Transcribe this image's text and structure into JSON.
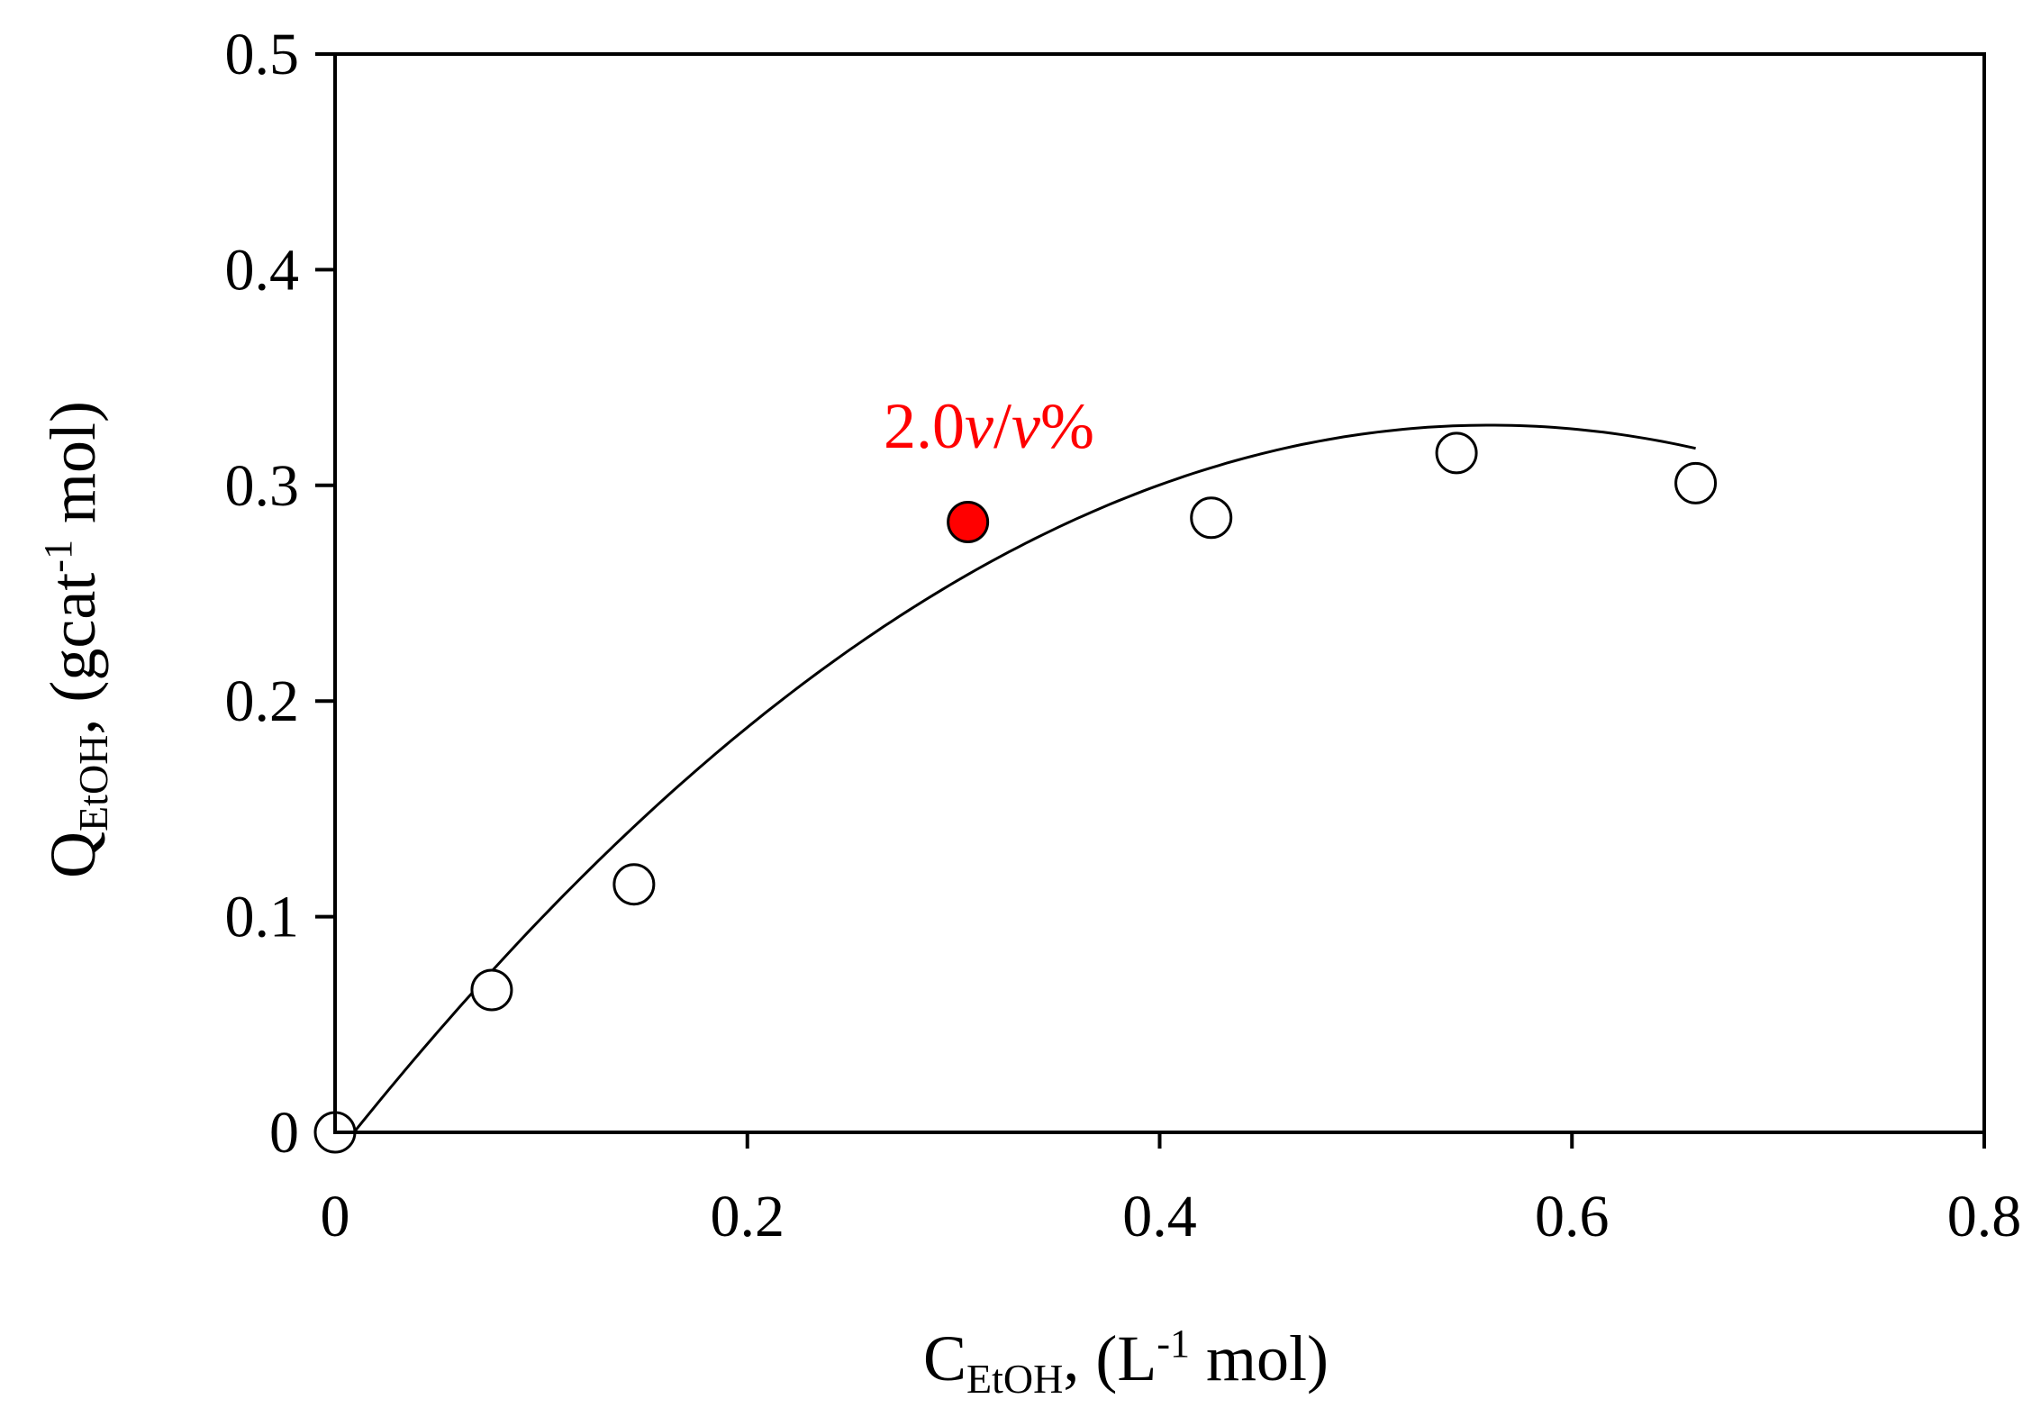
{
  "chart_data": {
    "type": "scatter",
    "xlim": [
      0,
      0.8
    ],
    "ylim": [
      0,
      0.5
    ],
    "x_ticks": [
      "0",
      "0.2",
      "0.4",
      "0.6",
      "0.8"
    ],
    "y_ticks": [
      "0",
      "0.1",
      "0.2",
      "0.3",
      "0.4",
      "0.5"
    ],
    "xlabel": {
      "main": "C",
      "sub": "EtOH",
      "rest1": ", (L",
      "sup": "-1",
      "rest2": " mol)"
    },
    "ylabel": {
      "main": "Q",
      "sub": "EtOH",
      "rest1": ", (gcat",
      "sup": "-1",
      "rest2": " mol)"
    },
    "grid": false,
    "series": [
      {
        "marker": "open-circle",
        "x": [
          0,
          0.076,
          0.145,
          0.425,
          0.544,
          0.66
        ],
        "y": [
          0,
          0.066,
          0.115,
          0.285,
          0.315,
          0.301
        ]
      },
      {
        "marker": "filled-circle",
        "color": "#ff0000",
        "x": [
          0.307
        ],
        "y": [
          0.283
        ]
      }
    ],
    "fit_curve": {
      "type": "polynomial-2",
      "x_range": [
        0.01,
        0.66
      ],
      "coefficients": [
        -0.011,
        1.21,
        -1.08
      ]
    },
    "annotation": {
      "text_main": "2.0",
      "text_var1": "v",
      "text_slash": "/",
      "text_var2": "v",
      "text_pct": "%",
      "color": "#ff0000"
    }
  }
}
